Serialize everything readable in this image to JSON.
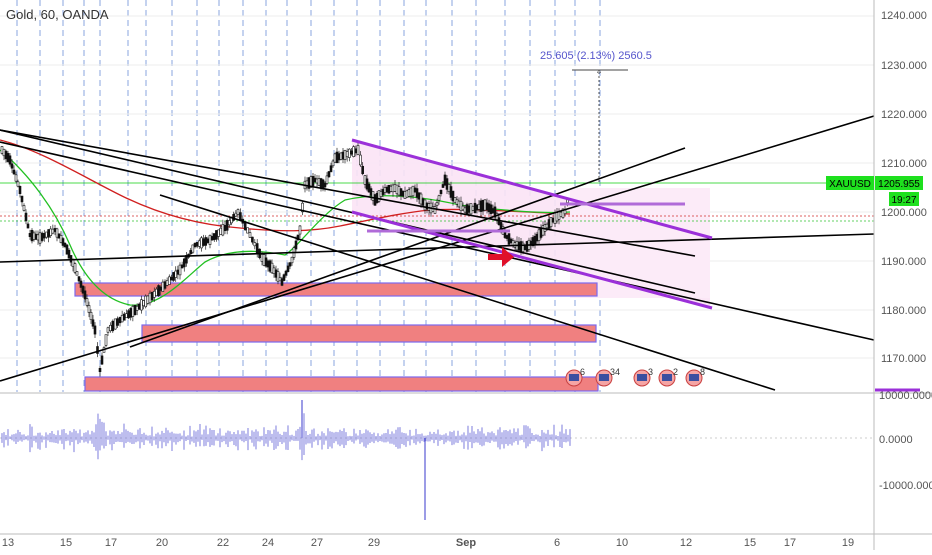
{
  "header": {
    "title": "Gold, 60, OANDA"
  },
  "measure": {
    "text": "25.605 (2.13%) 2560.5"
  },
  "price_axis": {
    "labels": [
      "1240.000",
      "1230.000",
      "1220.000",
      "1210.000",
      "1200.000",
      "1190.000",
      "1180.000",
      "1170.000"
    ],
    "symbol_tag": "XAUUSD",
    "price_tag": "1205.955",
    "countdown_tag": "19:27"
  },
  "indicator_axis": {
    "labels": [
      "10000.0000",
      "0.0000",
      "-10000.0000"
    ]
  },
  "time_axis": {
    "labels": [
      "13",
      "15",
      "17",
      "20",
      "22",
      "24",
      "27",
      "29",
      "Sep",
      "6",
      "10",
      "12",
      "15",
      "17",
      "19"
    ]
  },
  "events": {
    "labels": [
      "6",
      "34",
      "3",
      "2",
      "8"
    ]
  },
  "colors": {
    "channel": "#9b30d9",
    "zone_fill": "#f08080",
    "zone_border": "#7b68ee",
    "ma_green": "#22c022",
    "ma_red": "#d02020",
    "current_price": "#00d000",
    "arrow": "#e0102a",
    "volume": "#5b5bd6",
    "grid_dashed": "#6c8fd8"
  }
}
